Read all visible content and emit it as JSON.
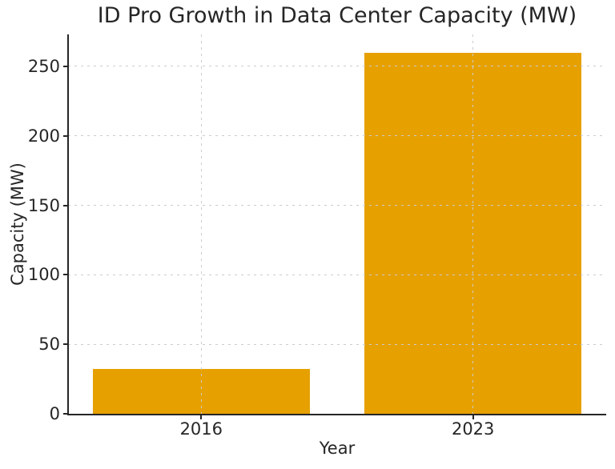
{
  "chart_data": {
    "type": "bar",
    "title": "ID Pro Growth in Data Center Capacity (MW)",
    "xlabel": "Year",
    "ylabel": "Capacity (MW)",
    "categories": [
      "2016",
      "2023"
    ],
    "values": [
      32,
      260
    ],
    "yticks": [
      0,
      50,
      100,
      150,
      200,
      250
    ],
    "ylim": [
      0,
      273
    ],
    "bar_color": "#E6A000",
    "bar_width_fraction": 0.8,
    "grid": "both-axes, dashed",
    "grid_color": "#cccccc",
    "axis_color": "#262626",
    "text_color": "#262626",
    "background_color": "#ffffff",
    "legend": "none",
    "spines": "left and bottom only"
  }
}
